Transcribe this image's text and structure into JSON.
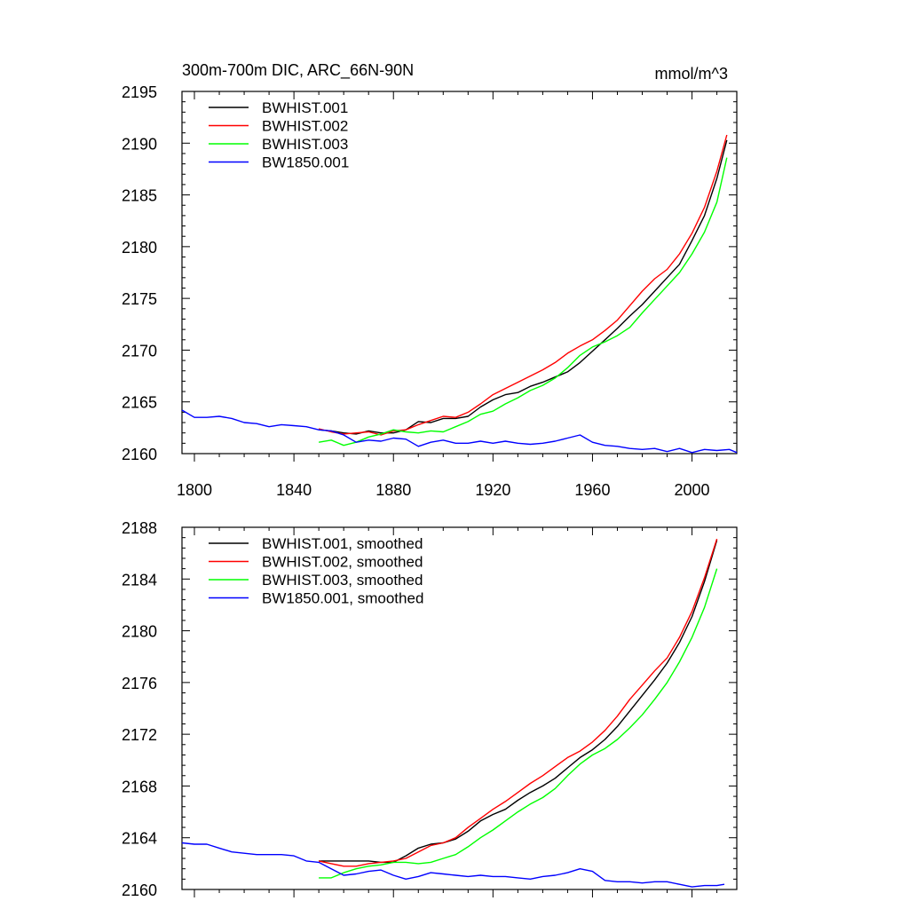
{
  "chart_data": [
    {
      "type": "line",
      "title": "300m-700m DIC, ARC_66N-90N",
      "units": "mmol/m^3",
      "xlim": [
        1795,
        2018
      ],
      "ylim": [
        2160,
        2195
      ],
      "xticks": [
        1800,
        1840,
        1880,
        1920,
        1960,
        2000
      ],
      "yticks": [
        2160,
        2165,
        2170,
        2175,
        2180,
        2185,
        2190,
        2195
      ],
      "show_xtick_labels": true,
      "legend": "top-left",
      "series": [
        {
          "name": "BWHIST.001",
          "color": "#000000",
          "x": [
            1850,
            1855,
            1860,
            1865,
            1870,
            1875,
            1880,
            1885,
            1890,
            1895,
            1900,
            1905,
            1910,
            1915,
            1920,
            1925,
            1930,
            1935,
            1940,
            1945,
            1950,
            1955,
            1960,
            1965,
            1970,
            1975,
            1980,
            1985,
            1990,
            1995,
            2000,
            2005,
            2010,
            2014
          ],
          "y": [
            2162.3,
            2162.2,
            2162.0,
            2161.9,
            2162.2,
            2162.0,
            2162.0,
            2162.3,
            2163.1,
            2163.0,
            2163.4,
            2163.4,
            2163.6,
            2164.5,
            2165.2,
            2165.7,
            2165.9,
            2166.5,
            2166.9,
            2167.4,
            2167.9,
            2168.8,
            2169.9,
            2171.0,
            2172.1,
            2173.3,
            2174.4,
            2175.7,
            2177.0,
            2178.3,
            2180.6,
            2183.0,
            2186.6,
            2190.3
          ]
        },
        {
          "name": "BWHIST.002",
          "color": "#ff0000",
          "x": [
            1850,
            1855,
            1860,
            1865,
            1870,
            1875,
            1880,
            1885,
            1890,
            1895,
            1900,
            1905,
            1910,
            1915,
            1920,
            1925,
            1930,
            1935,
            1940,
            1945,
            1950,
            1955,
            1960,
            1965,
            1970,
            1975,
            1980,
            1985,
            1990,
            1995,
            2000,
            2005,
            2010,
            2014
          ],
          "y": [
            2162.4,
            2162.1,
            2161.9,
            2162.0,
            2162.1,
            2161.8,
            2162.2,
            2162.3,
            2162.8,
            2163.2,
            2163.6,
            2163.5,
            2164.0,
            2164.8,
            2165.7,
            2166.3,
            2166.9,
            2167.5,
            2168.1,
            2168.8,
            2169.7,
            2170.4,
            2171.0,
            2171.9,
            2172.9,
            2174.3,
            2175.7,
            2176.9,
            2177.8,
            2179.3,
            2181.3,
            2183.8,
            2187.3,
            2190.8
          ]
        },
        {
          "name": "BWHIST.003",
          "color": "#00ff00",
          "x": [
            1850,
            1855,
            1860,
            1865,
            1870,
            1875,
            1880,
            1885,
            1890,
            1895,
            1900,
            1905,
            1910,
            1915,
            1920,
            1925,
            1930,
            1935,
            1940,
            1945,
            1950,
            1955,
            1960,
            1965,
            1970,
            1975,
            1980,
            1985,
            1990,
            1995,
            2000,
            2005,
            2010,
            2014
          ],
          "y": [
            2161.1,
            2161.3,
            2160.8,
            2161.1,
            2161.6,
            2161.9,
            2162.3,
            2162.1,
            2162.0,
            2162.2,
            2162.1,
            2162.6,
            2163.1,
            2163.8,
            2164.1,
            2164.8,
            2165.4,
            2166.1,
            2166.6,
            2167.3,
            2168.3,
            2169.5,
            2170.3,
            2170.8,
            2171.4,
            2172.2,
            2173.6,
            2174.9,
            2176.2,
            2177.5,
            2179.3,
            2181.4,
            2184.3,
            2188.6
          ]
        },
        {
          "name": "BW1850.001",
          "color": "#0000ff",
          "x": [
            1795,
            1800,
            1805,
            1810,
            1815,
            1820,
            1825,
            1830,
            1835,
            1840,
            1845,
            1850,
            1855,
            1860,
            1865,
            1870,
            1875,
            1880,
            1885,
            1890,
            1895,
            1900,
            1905,
            1910,
            1915,
            1920,
            1925,
            1930,
            1935,
            1940,
            1945,
            1950,
            1955,
            1960,
            1965,
            1970,
            1975,
            1980,
            1985,
            1990,
            1995,
            2000,
            2005,
            2010,
            2015,
            2018
          ],
          "y": [
            2164.2,
            2163.5,
            2163.5,
            2163.6,
            2163.4,
            2163.0,
            2162.9,
            2162.6,
            2162.8,
            2162.7,
            2162.6,
            2162.3,
            2162.2,
            2161.8,
            2161.1,
            2161.3,
            2161.2,
            2161.5,
            2161.4,
            2160.7,
            2161.1,
            2161.3,
            2161.0,
            2161.0,
            2161.2,
            2161.0,
            2161.2,
            2161.0,
            2160.9,
            2161.0,
            2161.2,
            2161.5,
            2161.8,
            2161.1,
            2160.8,
            2160.7,
            2160.5,
            2160.4,
            2160.5,
            2160.2,
            2160.5,
            2160.1,
            2160.4,
            2160.3,
            2160.4,
            2160.1
          ]
        }
      ]
    },
    {
      "type": "line",
      "title": "",
      "units": "",
      "xlim": [
        1795,
        2018
      ],
      "ylim": [
        2160,
        2188
      ],
      "xticks": [
        1800,
        1840,
        1880,
        1920,
        1960,
        2000
      ],
      "yticks": [
        2160,
        2164,
        2168,
        2172,
        2176,
        2180,
        2184,
        2188
      ],
      "show_xtick_labels": false,
      "legend": "top-left",
      "series": [
        {
          "name": "BWHIST.001, smoothed",
          "color": "#000000",
          "x": [
            1850,
            1855,
            1860,
            1865,
            1870,
            1875,
            1880,
            1885,
            1890,
            1895,
            1900,
            1905,
            1910,
            1915,
            1920,
            1925,
            1930,
            1935,
            1940,
            1945,
            1950,
            1955,
            1960,
            1965,
            1970,
            1975,
            1980,
            1985,
            1990,
            1995,
            2000,
            2005,
            2010
          ],
          "y": [
            2162.2,
            2162.2,
            2162.2,
            2162.2,
            2162.2,
            2162.1,
            2162.1,
            2162.6,
            2163.2,
            2163.5,
            2163.6,
            2163.9,
            2164.5,
            2165.3,
            2165.8,
            2166.2,
            2166.9,
            2167.5,
            2168.0,
            2168.6,
            2169.4,
            2170.2,
            2170.8,
            2171.6,
            2172.6,
            2173.8,
            2175.0,
            2176.2,
            2177.5,
            2179.1,
            2181.1,
            2183.8,
            2187.0
          ]
        },
        {
          "name": "BWHIST.002, smoothed",
          "color": "#ff0000",
          "x": [
            1850,
            1855,
            1860,
            1865,
            1870,
            1875,
            1880,
            1885,
            1890,
            1895,
            1900,
            1905,
            1910,
            1915,
            1920,
            1925,
            1930,
            1935,
            1940,
            1945,
            1950,
            1955,
            1960,
            1965,
            1970,
            1975,
            1980,
            1985,
            1990,
            1995,
            2000,
            2005,
            2010
          ],
          "y": [
            2162.2,
            2162.0,
            2161.8,
            2161.8,
            2162.0,
            2162.1,
            2162.2,
            2162.4,
            2162.9,
            2163.4,
            2163.6,
            2164.0,
            2164.8,
            2165.5,
            2166.2,
            2166.8,
            2167.5,
            2168.2,
            2168.8,
            2169.5,
            2170.2,
            2170.7,
            2171.4,
            2172.3,
            2173.4,
            2174.7,
            2175.8,
            2176.9,
            2177.9,
            2179.5,
            2181.5,
            2184.1,
            2187.1
          ]
        },
        {
          "name": "BWHIST.003, smoothed",
          "color": "#00ff00",
          "x": [
            1850,
            1855,
            1860,
            1865,
            1870,
            1875,
            1880,
            1885,
            1890,
            1895,
            1900,
            1905,
            1910,
            1915,
            1920,
            1925,
            1930,
            1935,
            1940,
            1945,
            1950,
            1955,
            1960,
            1965,
            1970,
            1975,
            1980,
            1985,
            1990,
            1995,
            2000,
            2005,
            2010
          ],
          "y": [
            2160.9,
            2160.9,
            2161.3,
            2161.6,
            2161.8,
            2161.9,
            2162.1,
            2162.1,
            2162.0,
            2162.1,
            2162.4,
            2162.7,
            2163.3,
            2164.0,
            2164.6,
            2165.3,
            2166.0,
            2166.6,
            2167.1,
            2167.8,
            2168.8,
            2169.7,
            2170.4,
            2170.9,
            2171.6,
            2172.5,
            2173.5,
            2174.7,
            2176.0,
            2177.6,
            2179.5,
            2181.8,
            2184.8
          ]
        },
        {
          "name": "BW1850.001, smoothed",
          "color": "#0000ff",
          "x": [
            1795,
            1800,
            1805,
            1810,
            1815,
            1820,
            1825,
            1830,
            1835,
            1840,
            1845,
            1850,
            1855,
            1860,
            1865,
            1870,
            1875,
            1880,
            1885,
            1890,
            1895,
            1900,
            1905,
            1910,
            1915,
            1920,
            1925,
            1930,
            1935,
            1940,
            1945,
            1950,
            1955,
            1960,
            1965,
            1970,
            1975,
            1980,
            1985,
            1990,
            1995,
            2000,
            2005,
            2010,
            2013
          ],
          "y": [
            2163.6,
            2163.5,
            2163.5,
            2163.2,
            2162.9,
            2162.8,
            2162.7,
            2162.7,
            2162.7,
            2162.6,
            2162.2,
            2162.1,
            2161.6,
            2161.1,
            2161.2,
            2161.4,
            2161.5,
            2161.1,
            2160.8,
            2161.0,
            2161.3,
            2161.2,
            2161.1,
            2161.0,
            2161.1,
            2161.0,
            2161.0,
            2160.9,
            2160.8,
            2161.0,
            2161.1,
            2161.3,
            2161.6,
            2161.4,
            2160.7,
            2160.6,
            2160.6,
            2160.5,
            2160.6,
            2160.6,
            2160.4,
            2160.2,
            2160.3,
            2160.3,
            2160.4
          ]
        }
      ]
    }
  ]
}
